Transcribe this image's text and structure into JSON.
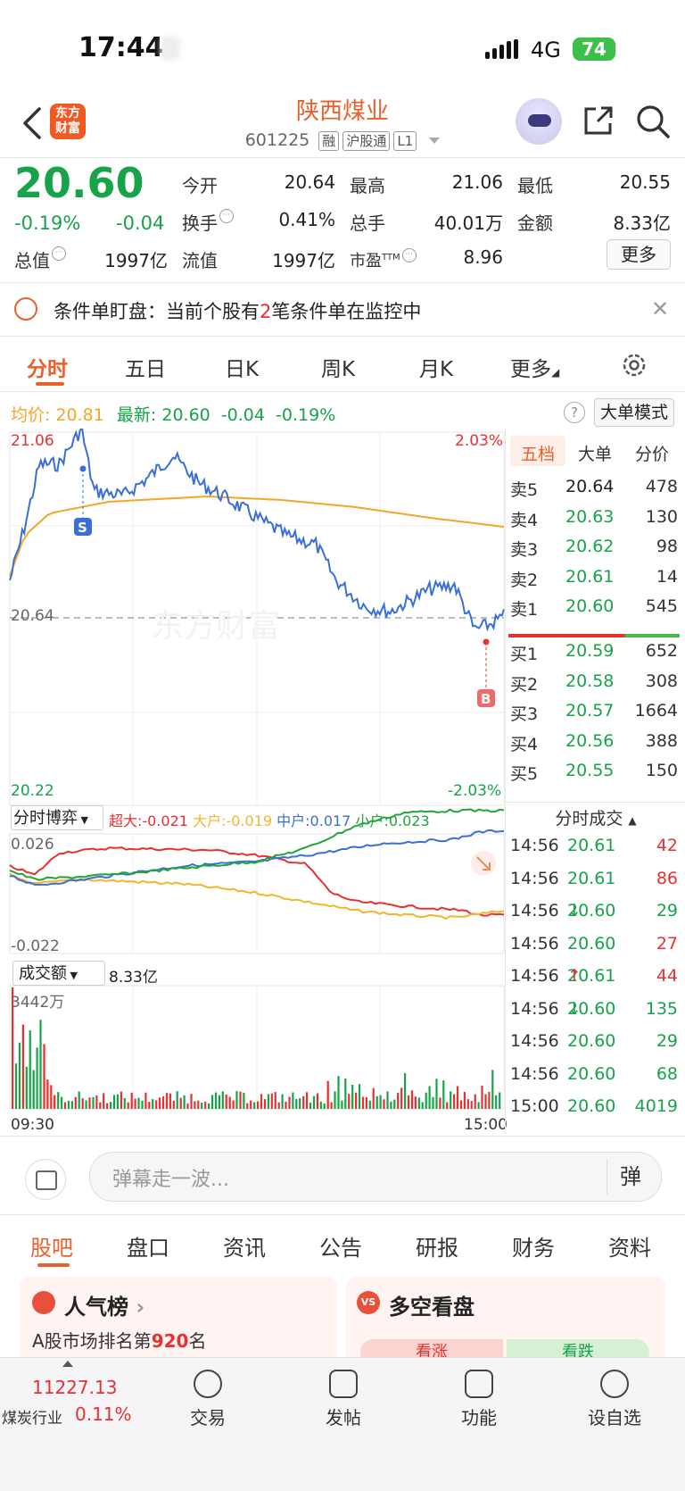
{
  "status": {
    "time": "17:44",
    "network": "4G",
    "battery": "74"
  },
  "header": {
    "logo_line1": "东方",
    "logo_line2": "财富",
    "stock_name": "陕西煤业",
    "code": "601225",
    "tags": [
      "融",
      "沪股通",
      "L1"
    ]
  },
  "quote": {
    "price": "20.60",
    "change_pct": "-0.19%",
    "change_amt": "-0.04",
    "open_label": "今开",
    "open": "20.64",
    "high_label": "最高",
    "high": "21.06",
    "low_label": "最低",
    "low": "20.55",
    "turnover_label": "换手",
    "turnover": "0.41%",
    "volume_label": "总手",
    "volume": "40.01万",
    "amount_label": "金额",
    "amount": "8.33亿",
    "mktcap_label": "总值",
    "mktcap": "1997亿",
    "float_label": "流值",
    "float": "1997亿",
    "pe_label": "市盈",
    "pe_sup": "TTM",
    "pe": "8.96",
    "more_label": "更多"
  },
  "condition": {
    "text_before": "条件单盯盘：当前个股有",
    "count": "2",
    "text_after": "笔条件单在监控中"
  },
  "chart_tabs": [
    "分时",
    "五日",
    "日K",
    "周K",
    "月K",
    "更多"
  ],
  "avg_row": {
    "avg_label": "均价:",
    "avg": "20.81",
    "latest_label": "最新:",
    "latest": "20.60",
    "chg": "-0.04",
    "pct": "-0.19%"
  },
  "big_order_label": "大单模式",
  "chart_labels": {
    "top_price": "21.06",
    "top_pct": "2.03%",
    "mid_price": "20.64",
    "bottom_price": "20.22",
    "bottom_pct": "-2.03%",
    "watermark": "东方财富",
    "sell_marker": "S",
    "buy_marker": "B",
    "flow_title": "分时博弈",
    "flow_super": "超大:-0.021",
    "flow_large": "大户:-0.019",
    "flow_mid": "中户:0.017",
    "flow_small": "小户:0.023",
    "flow_top": "0.026",
    "flow_bottom": "-0.022",
    "vol_title": "成交额",
    "vol_total": "8.33亿",
    "vol_max": "3442万",
    "time_start": "09:30",
    "time_end": "15:00"
  },
  "orderbook": {
    "tabs": [
      "五档",
      "大单",
      "分价"
    ],
    "sells": [
      {
        "label": "卖5",
        "price": "20.64",
        "vol": "478"
      },
      {
        "label": "卖4",
        "price": "20.63",
        "vol": "130"
      },
      {
        "label": "卖3",
        "price": "20.62",
        "vol": "98"
      },
      {
        "label": "卖2",
        "price": "20.61",
        "vol": "14"
      },
      {
        "label": "卖1",
        "price": "20.60",
        "vol": "545"
      }
    ],
    "buys": [
      {
        "label": "买1",
        "price": "20.59",
        "vol": "652"
      },
      {
        "label": "买2",
        "price": "20.58",
        "vol": "308"
      },
      {
        "label": "买3",
        "price": "20.57",
        "vol": "1664"
      },
      {
        "label": "买4",
        "price": "20.56",
        "vol": "388"
      },
      {
        "label": "买5",
        "price": "20.55",
        "vol": "150"
      }
    ]
  },
  "ticks": {
    "header": "分时成交",
    "rows": [
      {
        "time": "14:56",
        "price": "20.61",
        "arrow": "",
        "vol": "42",
        "color": "#17a34a",
        "vcolor": "#e8302f"
      },
      {
        "time": "14:56",
        "price": "20.61",
        "arrow": "",
        "vol": "86",
        "color": "#17a34a",
        "vcolor": "#e8302f"
      },
      {
        "time": "14:56",
        "price": "20.60",
        "arrow": "↓",
        "vol": "29",
        "color": "#17a34a",
        "vcolor": "#17a34a"
      },
      {
        "time": "14:56",
        "price": "20.60",
        "arrow": "",
        "vol": "27",
        "color": "#17a34a",
        "vcolor": "#e8302f"
      },
      {
        "time": "14:56",
        "price": "20.61",
        "arrow": "↑",
        "vol": "44",
        "color": "#17a34a",
        "vcolor": "#e8302f"
      },
      {
        "time": "14:56",
        "price": "20.60",
        "arrow": "↓",
        "vol": "135",
        "color": "#17a34a",
        "vcolor": "#17a34a"
      },
      {
        "time": "14:56",
        "price": "20.60",
        "arrow": "",
        "vol": "29",
        "color": "#17a34a",
        "vcolor": "#17a34a"
      },
      {
        "time": "14:56",
        "price": "20.60",
        "arrow": "",
        "vol": "68",
        "color": "#17a34a",
        "vcolor": "#17a34a"
      },
      {
        "time": "15:00",
        "price": "20.60",
        "arrow": "",
        "vol": "4019",
        "color": "#17a34a",
        "vcolor": "#17a34a"
      }
    ]
  },
  "danmu": {
    "placeholder": "弹幕走一波...",
    "send": "弹"
  },
  "bottom_tabs": [
    "股吧",
    "盘口",
    "资讯",
    "公告",
    "研报",
    "财务",
    "资料"
  ],
  "cards": {
    "popularity_title": "人气榜",
    "rank_text_before": "A股市场排名第",
    "rank": "920",
    "rank_text_after": "名",
    "duel_title": "多空看盘",
    "bull": "看涨",
    "bear": "看跌"
  },
  "nav": {
    "index_value": "11227.13",
    "industry": "煤炭行业",
    "industry_pct": "0.11%",
    "items": [
      "交易",
      "发帖",
      "功能",
      "设自选"
    ]
  },
  "colors": {
    "up": "#e8302f",
    "down": "#17a34a",
    "accent": "#e8602c",
    "avg_line": "#f5a623",
    "price_line": "#3a6fd8"
  }
}
